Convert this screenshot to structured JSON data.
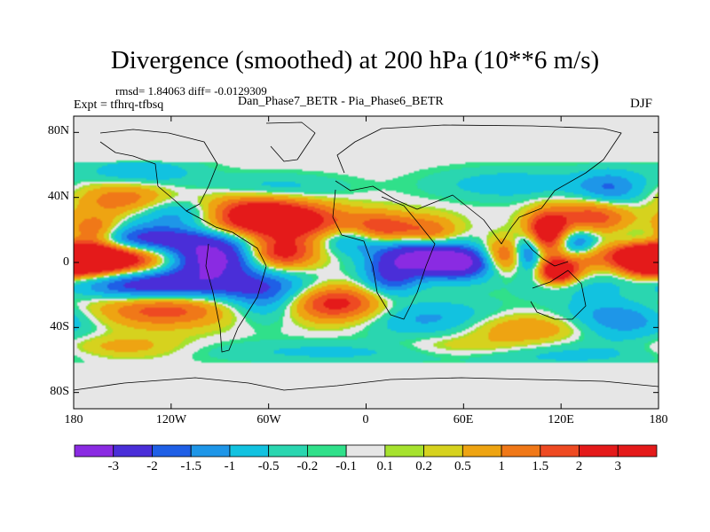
{
  "figure": {
    "title": "Divergence (smoothed) at 200 hPa (10**6 m/s)",
    "stats": "rmsd= 1.84063 diff= -0.0129309",
    "expt": "Expt = tfhrq-tfbsq",
    "subtitle": "Dan_Phase7_BETR - Pia_Phase6_BETR",
    "season": "DJF"
  },
  "axes": {
    "lat_labels": [
      "80N",
      "40N",
      "0",
      "40S",
      "80S"
    ],
    "lon_labels": [
      "180",
      "120W",
      "60W",
      "0",
      "60E",
      "120E",
      "180"
    ]
  },
  "colorbar": {
    "labels": [
      "-3",
      "-2",
      "-1.5",
      "-1",
      "-0.5",
      "-0.2",
      "-0.1",
      "0.1",
      "0.2",
      "0.5",
      "1",
      "1.5",
      "2",
      "3"
    ],
    "colors": [
      "#8a2be2",
      "#4a2ed8",
      "#1f5fe6",
      "#1e96e8",
      "#12c2e0",
      "#2ad6b0",
      "#30e08a",
      "#e6e6e6",
      "#a6e22e",
      "#d6d21e",
      "#eea412",
      "#f07818",
      "#ee4a22",
      "#e41a1a",
      "#e41a1a"
    ]
  },
  "chart_data": {
    "type": "heatmap",
    "title": "Divergence (smoothed) at 200 hPa (10**6 m/s)",
    "x_range": [
      -180,
      180
    ],
    "y_range": [
      -90,
      90
    ],
    "levels": [
      -3,
      -2,
      -1.5,
      -1,
      -0.5,
      -0.2,
      -0.1,
      0.1,
      0.2,
      0.5,
      1,
      1.5,
      2,
      3
    ],
    "features": [
      {
        "lon": -180,
        "lat": 2,
        "value": 3.2,
        "sx": 40,
        "sy": 7
      },
      {
        "lon": 178,
        "lat": 2,
        "value": 3.0,
        "sx": 25,
        "sy": 7
      },
      {
        "lon": -140,
        "lat": -14,
        "value": -3.2,
        "sx": 55,
        "sy": 7
      },
      {
        "lon": -135,
        "lat": 14,
        "value": -2.6,
        "sx": 40,
        "sy": 6
      },
      {
        "lon": -95,
        "lat": 2,
        "value": -3.5,
        "sx": 18,
        "sy": 8
      },
      {
        "lon": -52,
        "lat": 6,
        "value": 2.4,
        "sx": 15,
        "sy": 7
      },
      {
        "lon": -75,
        "lat": 30,
        "value": 3.0,
        "sx": 28,
        "sy": 9
      },
      {
        "lon": -45,
        "lat": 24,
        "value": 2.0,
        "sx": 25,
        "sy": 8
      },
      {
        "lon": -112,
        "lat": 30,
        "value": -2.2,
        "sx": 25,
        "sy": 7
      },
      {
        "lon": -148,
        "lat": 38,
        "value": 1.6,
        "sx": 20,
        "sy": 8
      },
      {
        "lon": -168,
        "lat": 18,
        "value": 2.2,
        "sx": 12,
        "sy": 7
      },
      {
        "lon": -125,
        "lat": -28,
        "value": 2.0,
        "sx": 30,
        "sy": 8
      },
      {
        "lon": -60,
        "lat": -22,
        "value": -1.5,
        "sx": 18,
        "sy": 10
      },
      {
        "lon": -20,
        "lat": -25,
        "value": 2.5,
        "sx": 22,
        "sy": 8
      },
      {
        "lon": -8,
        "lat": 14,
        "value": -1.6,
        "sx": 15,
        "sy": 6
      },
      {
        "lon": 10,
        "lat": 20,
        "value": 2.2,
        "sx": 15,
        "sy": 7
      },
      {
        "lon": 30,
        "lat": 4,
        "value": -3.0,
        "sx": 18,
        "sy": 8
      },
      {
        "lon": 58,
        "lat": 0,
        "value": -3.3,
        "sx": 16,
        "sy": 7
      },
      {
        "lon": 15,
        "lat": -10,
        "value": -1.8,
        "sx": 12,
        "sy": 8
      },
      {
        "lon": 40,
        "lat": 18,
        "value": 1.5,
        "sx": 12,
        "sy": 7
      },
      {
        "lon": 40,
        "lat": -35,
        "value": -1.2,
        "sx": 30,
        "sy": 8
      },
      {
        "lon": 85,
        "lat": 4,
        "value": 2.0,
        "sx": 10,
        "sy": 7
      },
      {
        "lon": 112,
        "lat": 18,
        "value": 3.4,
        "sx": 10,
        "sy": 9
      },
      {
        "lon": 118,
        "lat": -6,
        "value": 3.2,
        "sx": 8,
        "sy": 5
      },
      {
        "lon": 100,
        "lat": 6,
        "value": -2.8,
        "sx": 7,
        "sy": 8
      },
      {
        "lon": 128,
        "lat": 12,
        "value": -2.4,
        "sx": 10,
        "sy": 7
      },
      {
        "lon": 140,
        "lat": 28,
        "value": 2.0,
        "sx": 16,
        "sy": 8
      },
      {
        "lon": 150,
        "lat": 45,
        "value": -1.5,
        "sx": 15,
        "sy": 8
      },
      {
        "lon": 152,
        "lat": 0,
        "value": -2.2,
        "sx": 12,
        "sy": 7
      },
      {
        "lon": 175,
        "lat": -15,
        "value": 1.6,
        "sx": 25,
        "sy": 8
      },
      {
        "lon": 155,
        "lat": -35,
        "value": -1.6,
        "sx": 25,
        "sy": 9
      },
      {
        "lon": 100,
        "lat": -40,
        "value": 1.2,
        "sx": 30,
        "sy": 6
      },
      {
        "lon": -60,
        "lat": 45,
        "value": -1.0,
        "sx": 30,
        "sy": 6
      },
      {
        "lon": 90,
        "lat": 48,
        "value": -0.8,
        "sx": 35,
        "sy": 7
      },
      {
        "lon": -140,
        "lat": 55,
        "value": -1.0,
        "sx": 25,
        "sy": 6
      },
      {
        "lon": -20,
        "lat": -55,
        "value": -0.6,
        "sx": 60,
        "sy": 5
      },
      {
        "lon": 120,
        "lat": -57,
        "value": -0.6,
        "sx": 50,
        "sy": 5
      },
      {
        "lon": -150,
        "lat": -52,
        "value": 0.8,
        "sx": 25,
        "sy": 5
      },
      {
        "lon": 60,
        "lat": -52,
        "value": 0.7,
        "sx": 30,
        "sy": 5
      }
    ]
  }
}
